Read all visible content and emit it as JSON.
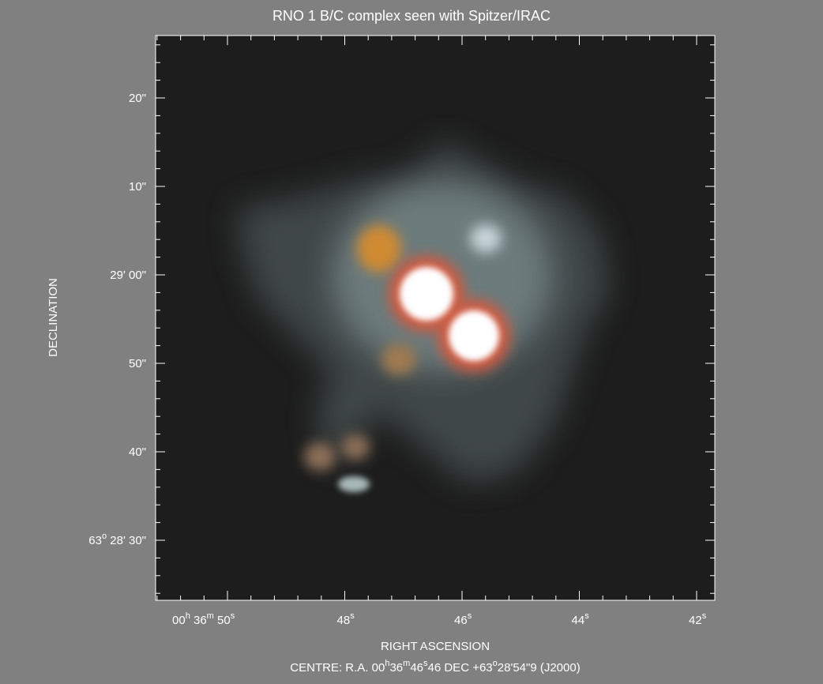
{
  "title": "RNO 1 B/C complex seen with Spitzer/IRAC",
  "y_axis": {
    "label": "DECLINATION",
    "ticks": [
      [
        "20\""
      ],
      [
        "10\""
      ],
      [
        "29' 00\""
      ],
      [
        "50\""
      ],
      [
        "40\""
      ],
      [
        "63",
        "o",
        " 28' 30\""
      ]
    ]
  },
  "x_axis": {
    "label": "RIGHT ASCENSION",
    "ticks": [
      [
        "00",
        "h",
        " 36",
        "m",
        " 50",
        "s"
      ],
      [
        "48",
        "s"
      ],
      [
        "46",
        "s"
      ],
      [
        "44",
        "s"
      ],
      [
        "42",
        "s"
      ]
    ]
  },
  "centre": [
    "CENTRE:  R.A. 00",
    "h",
    "36",
    "m",
    "46",
    "s",
    "46  DEC  +63",
    "o",
    "28'54\"9  (J2000)"
  ]
}
